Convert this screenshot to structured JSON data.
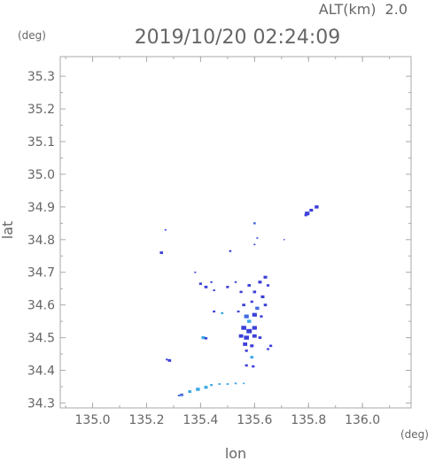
{
  "header": {
    "alt_label": "ALT(km)",
    "alt_value": "2.0",
    "timestamp": "2019/10/20 02:24:09"
  },
  "colors": {
    "frame": "#aaaaaa",
    "text": "#666666",
    "dark_blue": "#3b3fd8",
    "mid_blue": "#4169e1",
    "light_blue": "#3aa8e8"
  },
  "chart_data": {
    "type": "scatter",
    "title": "2019/10/20 02:24:09",
    "xlabel": "lon",
    "ylabel": "lat",
    "x_unit": "(deg)",
    "y_unit": "(deg)",
    "xlim": [
      134.88,
      136.18
    ],
    "ylim": [
      34.285,
      35.36
    ],
    "x_ticks": [
      "135.0",
      "135.2",
      "135.4",
      "135.6",
      "135.8",
      "136.0"
    ],
    "x_tick_values": [
      135.0,
      135.2,
      135.4,
      135.6,
      135.8,
      136.0
    ],
    "y_ticks": [
      "34.3",
      "34.4",
      "34.5",
      "34.6",
      "34.7",
      "34.8",
      "34.9",
      "35.0",
      "35.1",
      "35.2",
      "35.3"
    ],
    "y_tick_values": [
      34.3,
      34.4,
      34.5,
      34.6,
      34.7,
      34.8,
      34.9,
      35.0,
      35.1,
      35.2,
      35.3
    ],
    "grid": false,
    "points": [
      {
        "lon": 135.795,
        "lat": 34.88,
        "s": 2.6,
        "c": "dark"
      },
      {
        "lon": 135.81,
        "lat": 34.89,
        "s": 2.0,
        "c": "dark"
      },
      {
        "lon": 135.83,
        "lat": 34.9,
        "s": 2.2,
        "c": "dark"
      },
      {
        "lon": 135.79,
        "lat": 34.875,
        "s": 1.6,
        "c": "dark"
      },
      {
        "lon": 135.27,
        "lat": 34.83,
        "s": 1.0,
        "c": "dark"
      },
      {
        "lon": 135.6,
        "lat": 34.85,
        "s": 1.4,
        "c": "mid"
      },
      {
        "lon": 135.255,
        "lat": 34.76,
        "s": 1.8,
        "c": "dark"
      },
      {
        "lon": 135.51,
        "lat": 34.765,
        "s": 1.3,
        "c": "dark"
      },
      {
        "lon": 135.61,
        "lat": 34.805,
        "s": 1.0,
        "c": "dark"
      },
      {
        "lon": 135.6,
        "lat": 34.785,
        "s": 1.0,
        "c": "dark"
      },
      {
        "lon": 135.71,
        "lat": 34.8,
        "s": 0.8,
        "c": "dark"
      },
      {
        "lon": 135.38,
        "lat": 34.7,
        "s": 1.0,
        "c": "dark"
      },
      {
        "lon": 135.4,
        "lat": 34.665,
        "s": 1.6,
        "c": "dark"
      },
      {
        "lon": 135.42,
        "lat": 34.655,
        "s": 1.8,
        "c": "dark"
      },
      {
        "lon": 135.44,
        "lat": 34.67,
        "s": 1.2,
        "c": "dark"
      },
      {
        "lon": 135.45,
        "lat": 34.645,
        "s": 1.2,
        "c": "dark"
      },
      {
        "lon": 135.5,
        "lat": 34.655,
        "s": 1.6,
        "c": "dark"
      },
      {
        "lon": 135.53,
        "lat": 34.67,
        "s": 1.2,
        "c": "dark"
      },
      {
        "lon": 135.55,
        "lat": 34.64,
        "s": 1.6,
        "c": "dark"
      },
      {
        "lon": 135.58,
        "lat": 34.66,
        "s": 1.8,
        "c": "dark"
      },
      {
        "lon": 135.6,
        "lat": 34.64,
        "s": 1.8,
        "c": "dark"
      },
      {
        "lon": 135.62,
        "lat": 34.67,
        "s": 2.0,
        "c": "dark"
      },
      {
        "lon": 135.64,
        "lat": 34.685,
        "s": 2.0,
        "c": "dark"
      },
      {
        "lon": 135.65,
        "lat": 34.66,
        "s": 1.6,
        "c": "dark"
      },
      {
        "lon": 135.63,
        "lat": 34.625,
        "s": 2.0,
        "c": "dark"
      },
      {
        "lon": 135.59,
        "lat": 34.61,
        "s": 1.6,
        "c": "dark"
      },
      {
        "lon": 135.56,
        "lat": 34.6,
        "s": 1.8,
        "c": "dark"
      },
      {
        "lon": 135.54,
        "lat": 34.58,
        "s": 1.4,
        "c": "dark"
      },
      {
        "lon": 135.61,
        "lat": 34.59,
        "s": 2.2,
        "c": "mid"
      },
      {
        "lon": 135.64,
        "lat": 34.6,
        "s": 1.8,
        "c": "dark"
      },
      {
        "lon": 135.45,
        "lat": 34.58,
        "s": 1.4,
        "c": "dark"
      },
      {
        "lon": 135.48,
        "lat": 34.575,
        "s": 1.4,
        "c": "light"
      },
      {
        "lon": 135.57,
        "lat": 34.565,
        "s": 2.6,
        "c": "mid"
      },
      {
        "lon": 135.6,
        "lat": 34.57,
        "s": 2.6,
        "c": "dark"
      },
      {
        "lon": 135.58,
        "lat": 34.55,
        "s": 2.2,
        "c": "light"
      },
      {
        "lon": 135.625,
        "lat": 34.565,
        "s": 1.6,
        "c": "dark"
      },
      {
        "lon": 135.56,
        "lat": 34.53,
        "s": 2.8,
        "c": "dark"
      },
      {
        "lon": 135.58,
        "lat": 34.52,
        "s": 3.0,
        "c": "dark"
      },
      {
        "lon": 135.6,
        "lat": 34.53,
        "s": 2.6,
        "c": "dark"
      },
      {
        "lon": 135.55,
        "lat": 34.505,
        "s": 2.4,
        "c": "dark"
      },
      {
        "lon": 135.57,
        "lat": 34.5,
        "s": 2.8,
        "c": "dark"
      },
      {
        "lon": 135.6,
        "lat": 34.505,
        "s": 2.4,
        "c": "dark"
      },
      {
        "lon": 135.62,
        "lat": 34.5,
        "s": 1.8,
        "c": "dark"
      },
      {
        "lon": 135.565,
        "lat": 34.48,
        "s": 2.4,
        "c": "dark"
      },
      {
        "lon": 135.59,
        "lat": 34.475,
        "s": 2.0,
        "c": "dark"
      },
      {
        "lon": 135.57,
        "lat": 34.46,
        "s": 1.6,
        "c": "dark"
      },
      {
        "lon": 135.66,
        "lat": 34.475,
        "s": 1.6,
        "c": "dark"
      },
      {
        "lon": 135.65,
        "lat": 34.465,
        "s": 1.4,
        "c": "dark"
      },
      {
        "lon": 135.41,
        "lat": 34.5,
        "s": 2.0,
        "c": "light"
      },
      {
        "lon": 135.42,
        "lat": 34.498,
        "s": 1.6,
        "c": "dark"
      },
      {
        "lon": 135.59,
        "lat": 34.44,
        "s": 1.8,
        "c": "light"
      },
      {
        "lon": 135.57,
        "lat": 34.415,
        "s": 1.6,
        "c": "dark"
      },
      {
        "lon": 135.595,
        "lat": 34.412,
        "s": 1.6,
        "c": "dark"
      },
      {
        "lon": 135.285,
        "lat": 34.43,
        "s": 1.8,
        "c": "dark"
      },
      {
        "lon": 135.275,
        "lat": 34.433,
        "s": 1.2,
        "c": "dark"
      },
      {
        "lon": 135.44,
        "lat": 34.355,
        "s": 1.4,
        "c": "light"
      },
      {
        "lon": 135.47,
        "lat": 34.358,
        "s": 1.2,
        "c": "light"
      },
      {
        "lon": 135.5,
        "lat": 34.358,
        "s": 1.2,
        "c": "light"
      },
      {
        "lon": 135.53,
        "lat": 34.36,
        "s": 1.2,
        "c": "light"
      },
      {
        "lon": 135.56,
        "lat": 34.36,
        "s": 1.0,
        "c": "light"
      },
      {
        "lon": 135.42,
        "lat": 34.348,
        "s": 2.0,
        "c": "light"
      },
      {
        "lon": 135.39,
        "lat": 34.342,
        "s": 2.2,
        "c": "light"
      },
      {
        "lon": 135.36,
        "lat": 34.335,
        "s": 1.8,
        "c": "light"
      },
      {
        "lon": 135.33,
        "lat": 34.325,
        "s": 1.8,
        "c": "mid"
      },
      {
        "lon": 135.32,
        "lat": 34.323,
        "s": 1.2,
        "c": "mid"
      }
    ]
  }
}
